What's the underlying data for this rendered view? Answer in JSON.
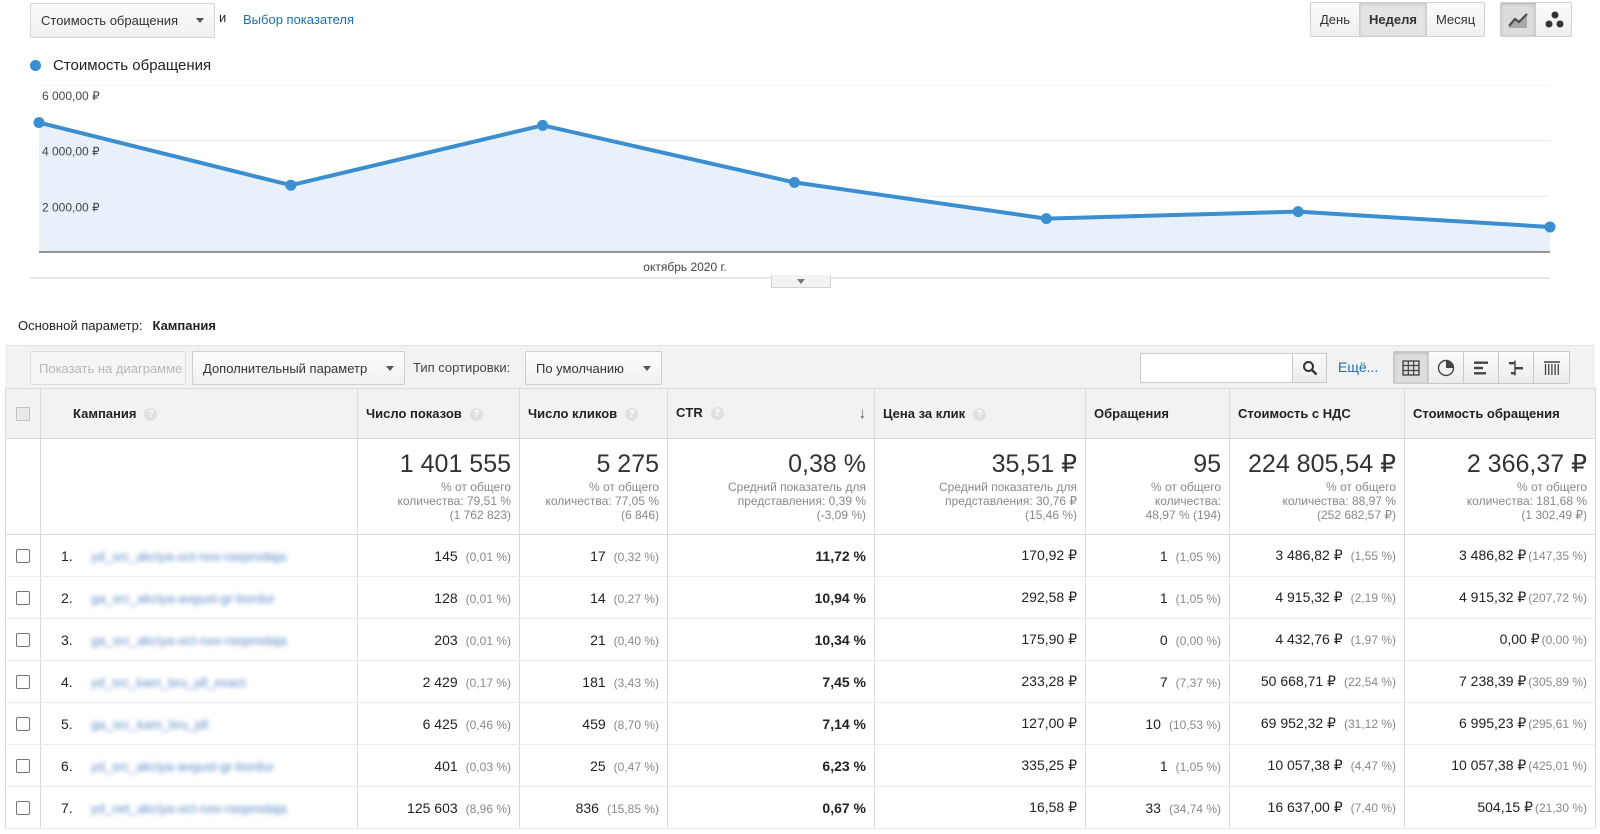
{
  "metric_selector": {
    "value": "Стоимость обращения"
  },
  "and_word": "и",
  "choose_metric_link": "Выбор показателя",
  "period_buttons": [
    {
      "label": "День",
      "active": false
    },
    {
      "label": "Неделя",
      "active": true
    },
    {
      "label": "Месяц",
      "active": false
    }
  ],
  "chart_type_buttons": [
    {
      "icon": "line-chart-icon",
      "active": true
    },
    {
      "icon": "scatter-chart-icon",
      "active": false
    }
  ],
  "accent_color": "#3b8ed0",
  "chart_data": {
    "type": "area",
    "title": "",
    "series": [
      {
        "name": "Стоимость обращения",
        "values": [
          4650,
          2400,
          4550,
          2500,
          1200,
          1450,
          900
        ]
      }
    ],
    "ylim": [
      0,
      6000
    ],
    "y_ticks": [
      "6 000,00 ₽",
      "4 000,00 ₽",
      "2 000,00 ₽"
    ],
    "y_tick_values": [
      6000,
      4000,
      2000
    ],
    "xlabel": "",
    "ylabel": "",
    "x_tick_label": "октябрь 2020 г.",
    "grid": true,
    "legend_position": "top-left"
  },
  "dimension": {
    "label": "Основной параметр:",
    "value": "Кампания"
  },
  "toolbar": {
    "plot_button": "Показать на диаграмме",
    "secondary_dimension": "Дополнительный параметр",
    "sort_label": "Тип сортировки:",
    "sort_value": "По умолчанию",
    "search_placeholder": "",
    "more_link": "Ещё..."
  },
  "view_buttons": [
    {
      "icon": "table-view-icon",
      "active": true
    },
    {
      "icon": "pie-view-icon",
      "active": false
    },
    {
      "icon": "performance-view-icon",
      "active": false
    },
    {
      "icon": "comparison-view-icon",
      "active": false
    },
    {
      "icon": "pivot-view-icon",
      "active": false
    }
  ],
  "table": {
    "columns": {
      "campaign": "Кампания",
      "impressions": "Число показов",
      "clicks": "Число кликов",
      "ctr": "CTR",
      "cpc": "Цена за клик",
      "conversions": "Обращения",
      "cost_vat": "Стоимость с НДС",
      "cost_per_conv": "Стоимость обращения"
    },
    "totals": {
      "impressions": {
        "value": "1 401 555",
        "l1": "% от общего",
        "l2": "количества: 79,51 %",
        "l3": "(1 762 823)"
      },
      "clicks": {
        "value": "5 275",
        "l1": "% от общего",
        "l2": "количества: 77,05 %",
        "l3": "(6 846)"
      },
      "ctr": {
        "value": "0,38 %",
        "l1": "Средний показатель для",
        "l2": "представления: 0,39 %",
        "l3": "(-3,09 %)"
      },
      "cpc": {
        "value": "35,51 ₽",
        "l1": "Средний показатель для",
        "l2": "представления: 30,76 ₽",
        "l3": "(15,46 %)"
      },
      "conversions": {
        "value": "95",
        "l1": "% от общего",
        "l2": "количества:",
        "l3": "48,97 % (194)"
      },
      "cost_vat": {
        "value": "224 805,54 ₽",
        "l1": "% от общего",
        "l2": "количества: 88,97 %",
        "l3": "(252 682,57 ₽)"
      },
      "cost_per_conv": {
        "value": "2 366,37 ₽",
        "l1": "% от общего",
        "l2": "количества: 181,68 %",
        "l3": "(1 302,49 ₽)"
      }
    },
    "rows": [
      {
        "num": "1.",
        "campaign": "yd_src_akciya-oct-nov-rasprodaja",
        "imp": "145",
        "imp_pct": "(0,01 %)",
        "clk": "17",
        "clk_pct": "(0,32 %)",
        "ctr": "11,72 %",
        "cpc": "170,92 ₽",
        "conv": "1",
        "conv_pct": "(1,05 %)",
        "cost": "3 486,82 ₽",
        "cost_pct": "(1,55 %)",
        "cpa": "3 486,82 ₽",
        "cpa_pct": "(147,35 %)"
      },
      {
        "num": "2.",
        "campaign": "ga_src_akciya-avgust-gr-bordur",
        "imp": "128",
        "imp_pct": "(0,01 %)",
        "clk": "14",
        "clk_pct": "(0,27 %)",
        "ctr": "10,94 %",
        "cpc": "292,58 ₽",
        "conv": "1",
        "conv_pct": "(1,05 %)",
        "cost": "4 915,32 ₽",
        "cost_pct": "(2,19 %)",
        "cpa": "4 915,32 ₽",
        "cpa_pct": "(207,72 %)"
      },
      {
        "num": "3.",
        "campaign": "ga_src_akciya-oct-nov-rasprodaja",
        "imp": "203",
        "imp_pct": "(0,01 %)",
        "clk": "21",
        "clk_pct": "(0,40 %)",
        "ctr": "10,34 %",
        "cpc": "175,90 ₽",
        "conv": "0",
        "conv_pct": "(0,00 %)",
        "cost": "4 432,76 ₽",
        "cost_pct": "(1,97 %)",
        "cpa": "0,00 ₽",
        "cpa_pct": "(0,00 %)"
      },
      {
        "num": "4.",
        "campaign": "yd_src_kam_bru_pll_exact",
        "imp": "2 429",
        "imp_pct": "(0,17 %)",
        "clk": "181",
        "clk_pct": "(3,43 %)",
        "ctr": "7,45 %",
        "cpc": "233,28 ₽",
        "conv": "7",
        "conv_pct": "(7,37 %)",
        "cost": "50 668,71 ₽",
        "cost_pct": "(22,54 %)",
        "cpa": "7 238,39 ₽",
        "cpa_pct": "(305,89 %)"
      },
      {
        "num": "5.",
        "campaign": "ga_src_kam_bru_pll",
        "imp": "6 425",
        "imp_pct": "(0,46 %)",
        "clk": "459",
        "clk_pct": "(8,70 %)",
        "ctr": "7,14 %",
        "cpc": "127,00 ₽",
        "conv": "10",
        "conv_pct": "(10,53 %)",
        "cost": "69 952,32 ₽",
        "cost_pct": "(31,12 %)",
        "cpa": "6 995,23 ₽",
        "cpa_pct": "(295,61 %)"
      },
      {
        "num": "6.",
        "campaign": "yd_src_akciya-avgust-gr-bordur",
        "imp": "401",
        "imp_pct": "(0,03 %)",
        "clk": "25",
        "clk_pct": "(0,47 %)",
        "ctr": "6,23 %",
        "cpc": "335,25 ₽",
        "conv": "1",
        "conv_pct": "(1,05 %)",
        "cost": "10 057,38 ₽",
        "cost_pct": "(4,47 %)",
        "cpa": "10 057,38 ₽",
        "cpa_pct": "(425,01 %)"
      },
      {
        "num": "7.",
        "campaign": "yd_net_akciya-oct-nov-rasprodaja",
        "imp": "125 603",
        "imp_pct": "(8,96 %)",
        "clk": "836",
        "clk_pct": "(15,85 %)",
        "ctr": "0,67 %",
        "cpc": "16,58 ₽",
        "conv": "33",
        "conv_pct": "(34,74 %)",
        "cost": "16 637,00 ₽",
        "cost_pct": "(7,40 %)",
        "cpa": "504,15 ₽",
        "cpa_pct": "(21,30 %)"
      }
    ]
  }
}
